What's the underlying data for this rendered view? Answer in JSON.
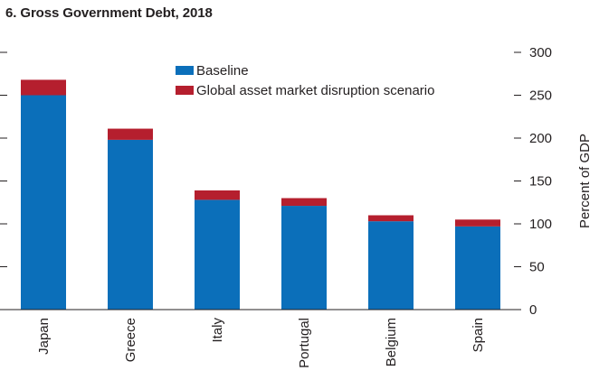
{
  "chart_data": {
    "type": "bar",
    "stacked": true,
    "title": "6. Gross Government Debt, 2018",
    "ylabel": "Percent of GDP",
    "ylim": [
      0,
      300
    ],
    "yticks": [
      0,
      50,
      100,
      150,
      200,
      250,
      300
    ],
    "categories": [
      "Japan",
      "Greece",
      "Italy",
      "Portugal",
      "Belgium",
      "Spain"
    ],
    "series": [
      {
        "name": "Baseline",
        "color": "#0b6fba",
        "values": [
          250,
          198,
          128,
          121,
          103,
          97
        ]
      },
      {
        "name": "Global asset market disruption scenario",
        "color": "#b51f2e",
        "values": [
          18,
          13,
          11,
          9,
          7,
          8
        ]
      }
    ],
    "legend": "top-right",
    "grid": false
  }
}
